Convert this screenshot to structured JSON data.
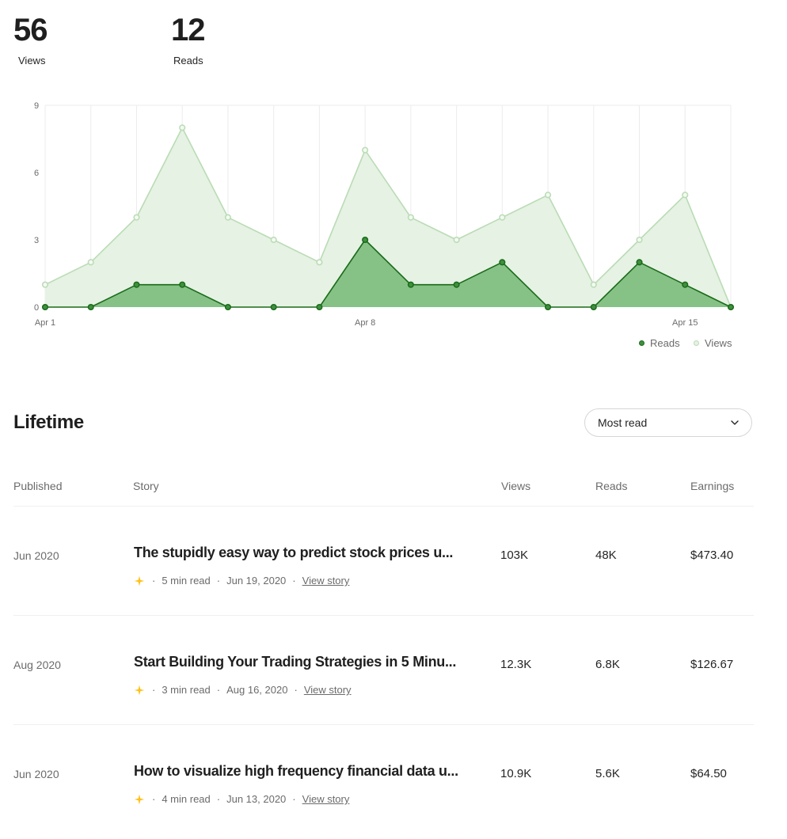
{
  "summary": {
    "views": {
      "value": "56",
      "label": "Views"
    },
    "reads": {
      "value": "12",
      "label": "Reads"
    }
  },
  "chart_data": {
    "type": "area",
    "x": [
      "Apr 1",
      "Apr 2",
      "Apr 3",
      "Apr 4",
      "Apr 5",
      "Apr 6",
      "Apr 7",
      "Apr 8",
      "Apr 9",
      "Apr 10",
      "Apr 11",
      "Apr 12",
      "Apr 13",
      "Apr 14",
      "Apr 15",
      "Apr 16"
    ],
    "x_tick_labels": [
      "Apr 1",
      "Apr 8",
      "Apr 15"
    ],
    "y_ticks": [
      0,
      3,
      6,
      9
    ],
    "ylim": [
      0,
      9
    ],
    "series": [
      {
        "name": "Views",
        "values": [
          1,
          2,
          4,
          8,
          4,
          3,
          2,
          7,
          4,
          3,
          4,
          5,
          1,
          3,
          5,
          0
        ],
        "color": "#b9dcb4",
        "fill": "#e6f2e4"
      },
      {
        "name": "Reads",
        "values": [
          0,
          0,
          1,
          1,
          0,
          0,
          0,
          3,
          1,
          1,
          2,
          0,
          0,
          2,
          1,
          0
        ],
        "color": "#1a6b1a",
        "fill": "#86c286"
      }
    ],
    "grid": "vertical",
    "legend": "bottom-right"
  },
  "legend": {
    "reads": "Reads",
    "views": "Views"
  },
  "lifetime": {
    "title": "Lifetime",
    "sort": {
      "selected": "Most read"
    },
    "columns": {
      "published": "Published",
      "story": "Story",
      "views": "Views",
      "reads": "Reads",
      "earnings": "Earnings"
    },
    "rows": [
      {
        "published": "Jun 2020",
        "title": "The stupidly easy way to predict stock prices u...",
        "read_time": "5 min read",
        "date": "Jun 19, 2020",
        "link": "View story",
        "views": "103K",
        "reads": "48K",
        "earnings": "$473.40"
      },
      {
        "published": "Aug 2020",
        "title": "Start Building Your Trading Strategies in 5 Minu...",
        "read_time": "3 min read",
        "date": "Aug 16, 2020",
        "link": "View story",
        "views": "12.3K",
        "reads": "6.8K",
        "earnings": "$126.67"
      },
      {
        "published": "Jun 2020",
        "title": "How to visualize high frequency financial data u...",
        "read_time": "4 min read",
        "date": "Jun 13, 2020",
        "link": "View story",
        "views": "10.9K",
        "reads": "5.6K",
        "earnings": "$64.50"
      }
    ]
  },
  "colors": {
    "member_star": "#ffc017"
  },
  "icons": {
    "member": "star-icon",
    "sort": "chevron-down-icon"
  }
}
